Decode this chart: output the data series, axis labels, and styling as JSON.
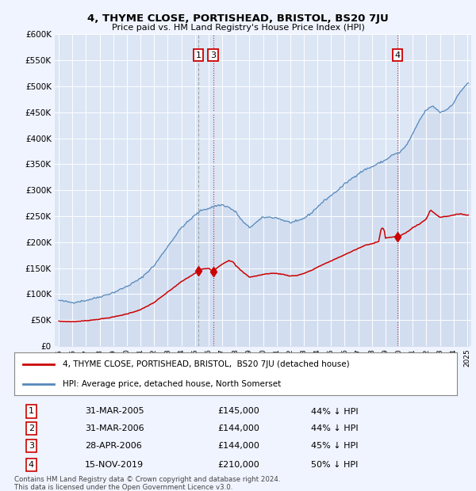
{
  "title": "4, THYME CLOSE, PORTISHEAD, BRISTOL, BS20 7JU",
  "subtitle": "Price paid vs. HM Land Registry's House Price Index (HPI)",
  "background_color": "#f0f4ff",
  "plot_bg_color": "#dce6f5",
  "grid_color": "#ffffff",
  "ylim": [
    0,
    600000
  ],
  "yticks": [
    0,
    50000,
    100000,
    150000,
    200000,
    250000,
    300000,
    350000,
    400000,
    450000,
    500000,
    550000,
    600000
  ],
  "ytick_labels": [
    "£0",
    "£50K",
    "£100K",
    "£150K",
    "£200K",
    "£250K",
    "£300K",
    "£350K",
    "£400K",
    "£450K",
    "£500K",
    "£550K",
    "£600K"
  ],
  "xlim_start": 1994.7,
  "xlim_end": 2025.3,
  "legend_line1": "4, THYME CLOSE, PORTISHEAD, BRISTOL,  BS20 7JU (detached house)",
  "legend_line2": "HPI: Average price, detached house, North Somerset",
  "red_line_color": "#cc0000",
  "blue_line_color": "#5588bb",
  "blue_fill_color": "#ccd9ee",
  "transactions": [
    {
      "num": 1,
      "date": "31-MAR-2005",
      "price": 145000,
      "pct": "44% ↓ HPI",
      "year": 2005.25,
      "show_marker": true,
      "vline_color": "#999999",
      "vline_style": "--"
    },
    {
      "num": 2,
      "date": "31-MAR-2006",
      "price": 144000,
      "pct": "44% ↓ HPI",
      "year": 2006.25,
      "show_marker": false,
      "vline_color": null,
      "vline_style": null
    },
    {
      "num": 3,
      "date": "28-APR-2006",
      "price": 144000,
      "pct": "45% ↓ HPI",
      "year": 2006.33,
      "show_marker": true,
      "vline_color": "#cc0000",
      "vline_style": ":"
    },
    {
      "num": 4,
      "date": "15-NOV-2019",
      "price": 210000,
      "pct": "50% ↓ HPI",
      "year": 2019.88,
      "show_marker": true,
      "vline_color": "#cc0000",
      "vline_style": ":"
    }
  ],
  "footer_line1": "Contains HM Land Registry data © Crown copyright and database right 2024.",
  "footer_line2": "This data is licensed under the Open Government Licence v3.0."
}
